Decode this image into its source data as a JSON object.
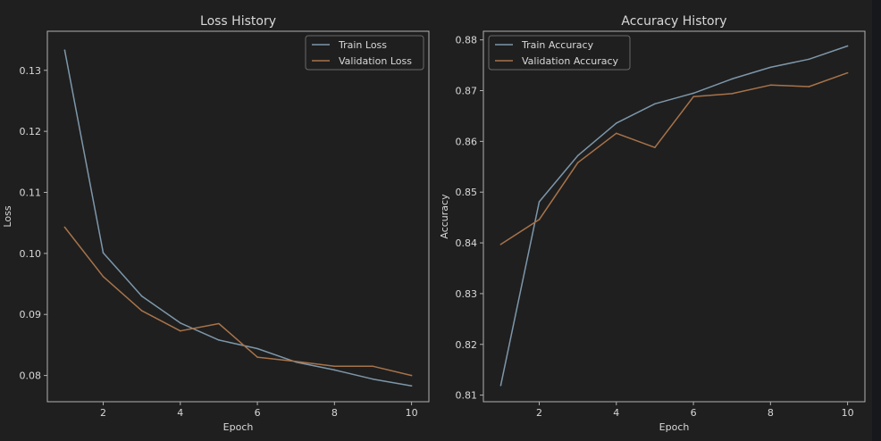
{
  "chart_data": [
    {
      "type": "line",
      "title": "Loss History",
      "xlabel": "Epoch",
      "ylabel": "Loss",
      "x": [
        1,
        2,
        3,
        4,
        5,
        6,
        7,
        8,
        9,
        10
      ],
      "xticks": [
        "2",
        "4",
        "6",
        "8",
        "10"
      ],
      "yticks": [
        "0.08",
        "0.09",
        "0.10",
        "0.11",
        "0.12",
        "0.13"
      ],
      "xlim": [
        0.55,
        10.45
      ],
      "ylim": [
        0.0757,
        0.1364
      ],
      "grid": false,
      "legend": "top-right",
      "series": [
        {
          "name": "Train Loss",
          "color": "#7d97aa",
          "values": [
            0.1333,
            0.1001,
            0.093,
            0.0886,
            0.0858,
            0.0844,
            0.0822,
            0.0809,
            0.0794,
            0.0783
          ]
        },
        {
          "name": "Validation Loss",
          "color": "#a8734a",
          "values": [
            0.1043,
            0.0962,
            0.0906,
            0.0873,
            0.0885,
            0.083,
            0.0823,
            0.0815,
            0.0815,
            0.08
          ]
        }
      ]
    },
    {
      "type": "line",
      "title": "Accuracy History",
      "xlabel": "Epoch",
      "ylabel": "Accuracy",
      "x": [
        1,
        2,
        3,
        4,
        5,
        6,
        7,
        8,
        9,
        10
      ],
      "xticks": [
        "2",
        "4",
        "6",
        "8",
        "10"
      ],
      "yticks": [
        "0.81",
        "0.82",
        "0.83",
        "0.84",
        "0.85",
        "0.86",
        "0.87",
        "0.88"
      ],
      "xlim": [
        0.55,
        10.45
      ],
      "ylim": [
        0.8087,
        0.8817
      ],
      "grid": false,
      "legend": "top-left",
      "series": [
        {
          "name": "Train Accuracy",
          "color": "#7d97aa",
          "values": [
            0.8119,
            0.8481,
            0.8572,
            0.8636,
            0.8674,
            0.8695,
            0.8723,
            0.8746,
            0.8762,
            0.8788
          ]
        },
        {
          "name": "Validation Accuracy",
          "color": "#a8734a",
          "values": [
            0.8397,
            0.8446,
            0.8558,
            0.8616,
            0.8588,
            0.8688,
            0.8694,
            0.8711,
            0.8708,
            0.8735
          ]
        }
      ]
    }
  ],
  "theme": {
    "background": "#1f1f1f",
    "page_edge": "#17181c",
    "axes_edge": "#b0b0b0",
    "text": "#d8d8d8",
    "legend_background": "#1f1f1f",
    "legend_edge": "#6a6a6a"
  }
}
